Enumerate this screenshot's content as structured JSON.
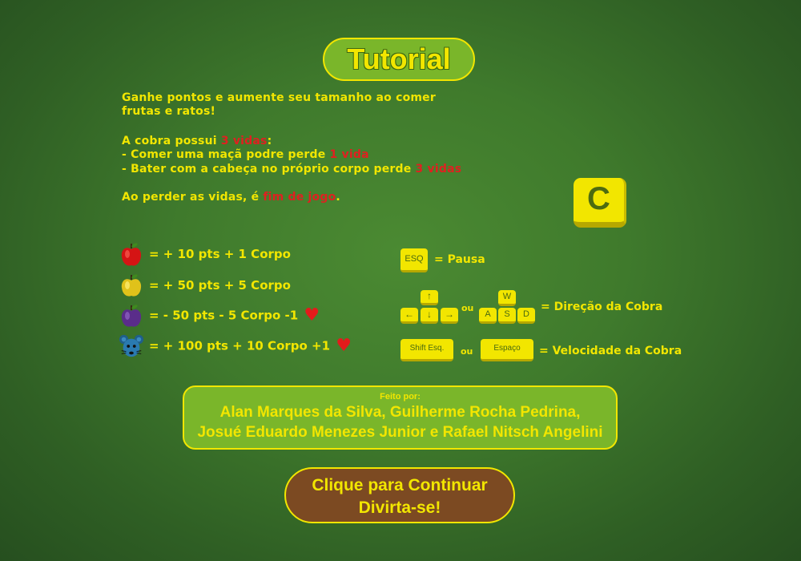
{
  "title": "Tutorial",
  "intro": {
    "line1": "Ganhe pontos e aumente seu tamanho ao comer",
    "line2": "frutas e ratos!",
    "lives_prefix": "A cobra possui ",
    "lives_value": "3 vidas",
    "lives_suffix": ":",
    "rule1_prefix": "- Comer uma maçã podre perde ",
    "rule1_value": "1 vida",
    "rule2_prefix": "- Bater com a cabeça no próprio corpo perde ",
    "rule2_value": "3 vidas",
    "gameover_prefix": "Ao perder as vidas, é ",
    "gameover_value": "fim de jogo",
    "gameover_suffix": "."
  },
  "c_key": {
    "label": "C"
  },
  "items": [
    {
      "icon": "red-apple-icon",
      "label": "= + 10 pts   + 1 Corpo",
      "heart": false
    },
    {
      "icon": "golden-apple-icon",
      "label": "= + 50 pts   + 5 Corpo",
      "heart": false
    },
    {
      "icon": "rotten-apple-icon",
      "label": "= - 50 pts   - 5 Corpo   -1",
      "heart": true
    },
    {
      "icon": "mouse-icon",
      "label": "= + 100 pts + 10 Corpo +1",
      "heart": true
    }
  ],
  "controls": {
    "esc_key": "ESQ",
    "pause_label": "= Pausa",
    "arrow_up": "↑",
    "arrow_left": "←",
    "arrow_down": "↓",
    "arrow_right": "→",
    "or1": "ou",
    "key_w": "W",
    "key_a": "A",
    "key_s": "S",
    "key_d": "D",
    "direction_label": "= Direção da Cobra",
    "shift_key": "Shift Esq.",
    "or2": "ou",
    "space_key": "Espaço",
    "speed_label": "= Velocidade da Cobra"
  },
  "credits": {
    "made_by": "Feito por:",
    "names_line1": "Alan Marques da Silva, Guilherme Rocha Pedrina,",
    "names_line2": "Josué Eduardo Menezes Junior e Rafael Nitsch Angelini"
  },
  "continue": {
    "line1": "Clique para Continuar",
    "line2": "Divirta-se!"
  },
  "colors": {
    "accent_yellow": "#f2e600",
    "highlight_red": "#e02020",
    "badge_green": "#7ab62a",
    "button_brown": "#7c4a22"
  }
}
